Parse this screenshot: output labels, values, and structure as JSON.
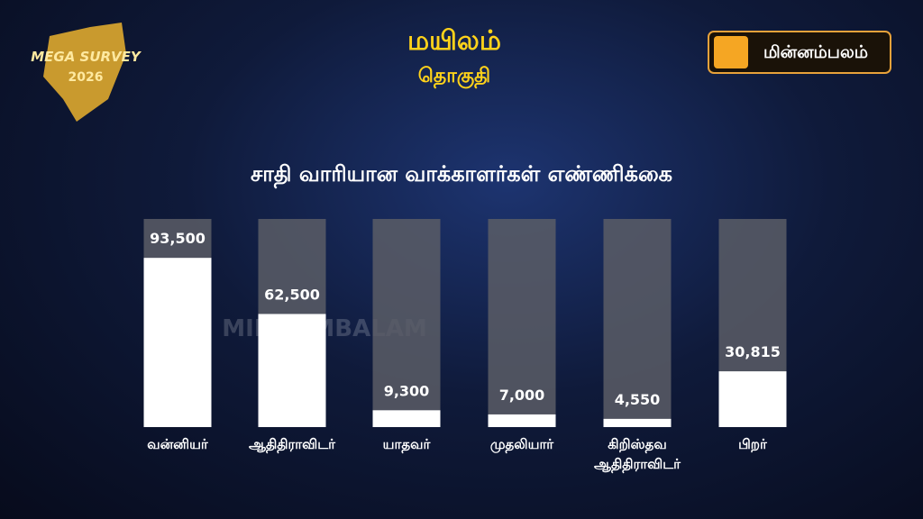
{
  "header": {
    "title": "மயிலம்",
    "subtitle": "தொகுதி",
    "badge_line1": "MEGA SURVEY",
    "badge_line2": "2026",
    "logo": "மின்னம்பலம்",
    "watermark": "MINNAMBALAM"
  },
  "chart_data": {
    "type": "bar",
    "title": "சாதி வாரியான வாக்காளர்கள்  எண்ணிக்கை",
    "categories": [
      "வன்னியர்",
      "ஆதிதிராவிடர்",
      "யாதவர்",
      "முதலியார்",
      "கிறிஸ்தவ ஆதிதிராவிடர்",
      "பிறர்"
    ],
    "values": [
      93500,
      62500,
      9300,
      7000,
      4550,
      30815
    ],
    "value_labels": [
      "93,500",
      "62,500",
      "9,300",
      "7,000",
      "4,550",
      "30,815"
    ],
    "color": "#ffffff",
    "ylim": [
      0,
      115000
    ]
  }
}
